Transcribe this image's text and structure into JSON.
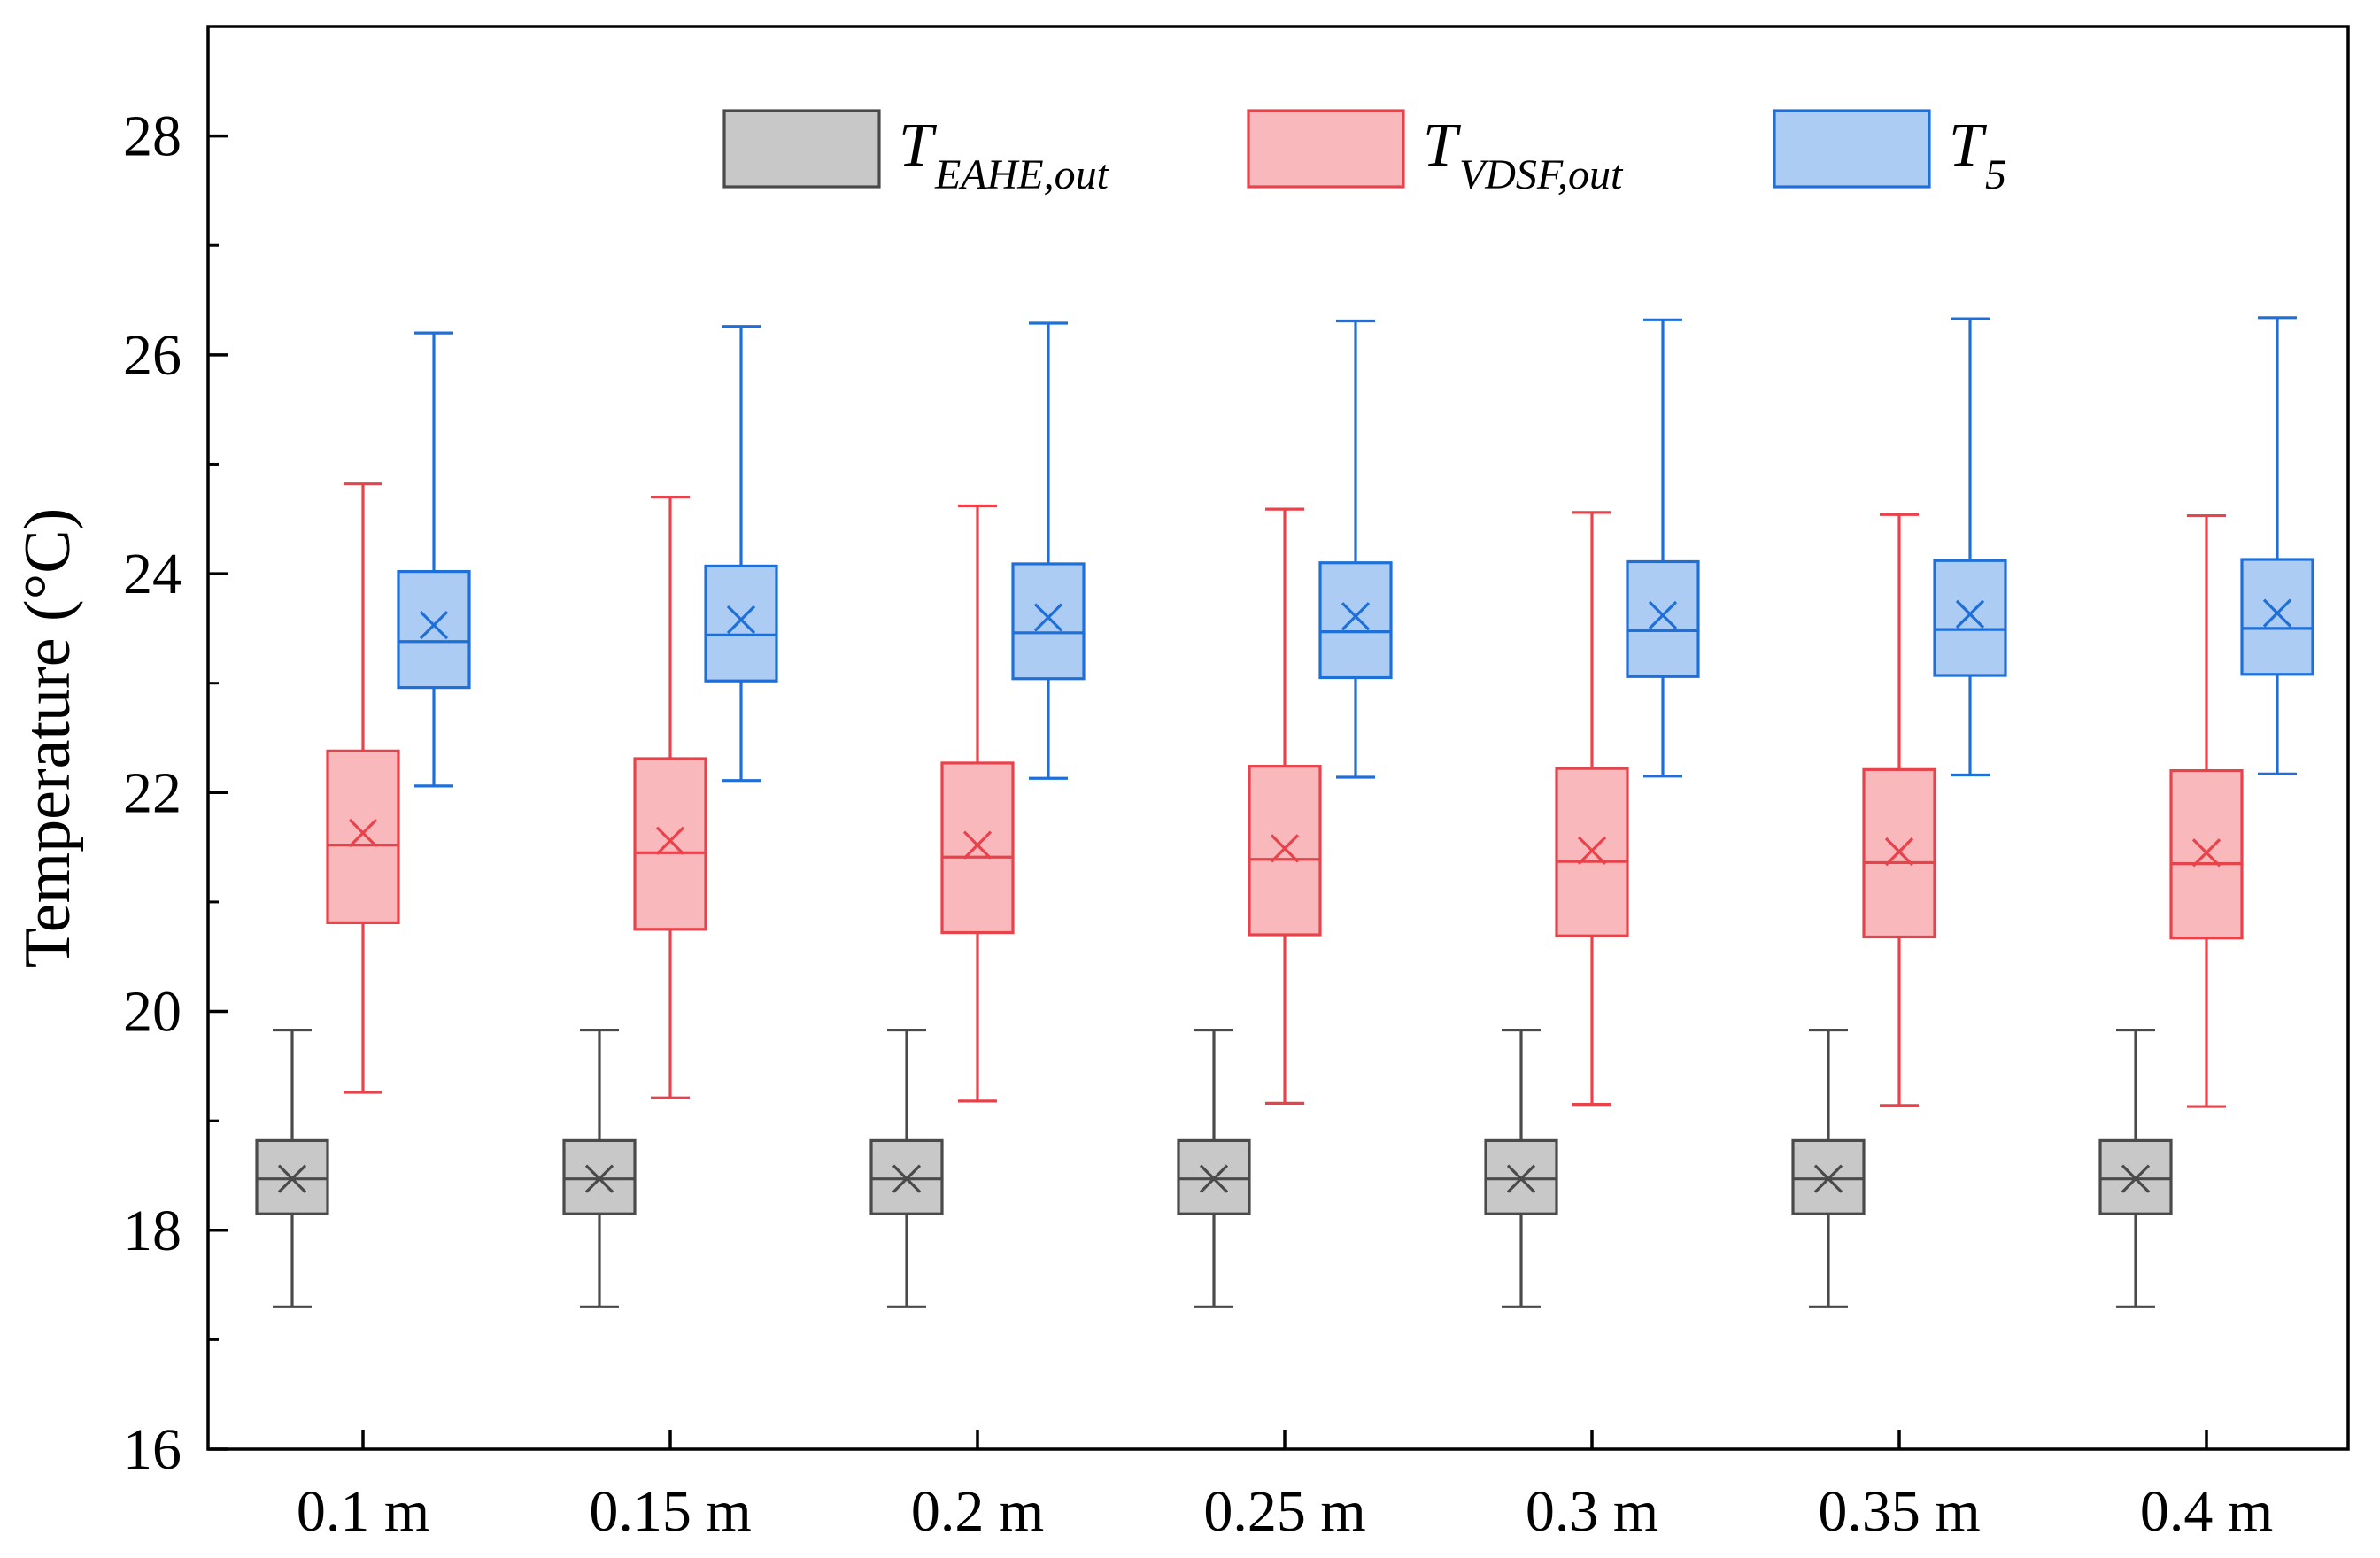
{
  "chart_data": {
    "type": "box",
    "title": "",
    "xlabel": "",
    "ylabel": "Temperature (°C)",
    "ylim": [
      16,
      29
    ],
    "yticks": [
      16,
      18,
      20,
      22,
      24,
      26,
      28
    ],
    "ytick_labels": [
      "16",
      "18",
      "20",
      "22",
      "24",
      "26",
      "28"
    ],
    "categories": [
      "0.1 m",
      "0.15 m",
      "0.2 m",
      "0.25 m",
      "0.3 m",
      "0.35 m",
      "0.4 m"
    ],
    "legend_position": "top-center",
    "series": [
      {
        "name": "T_EAHE,out",
        "label_main": "T",
        "label_sub": "EAHE,out",
        "stroke": "#4a4a4a",
        "fill": "#c8c8c8",
        "boxes": [
          {
            "min": 17.3,
            "q1": 18.15,
            "median": 18.47,
            "q3": 18.82,
            "max": 19.83,
            "mean": 18.47
          },
          {
            "min": 17.3,
            "q1": 18.15,
            "median": 18.47,
            "q3": 18.82,
            "max": 19.83,
            "mean": 18.47
          },
          {
            "min": 17.3,
            "q1": 18.15,
            "median": 18.47,
            "q3": 18.82,
            "max": 19.83,
            "mean": 18.47
          },
          {
            "min": 17.3,
            "q1": 18.15,
            "median": 18.47,
            "q3": 18.82,
            "max": 19.83,
            "mean": 18.47
          },
          {
            "min": 17.3,
            "q1": 18.15,
            "median": 18.47,
            "q3": 18.82,
            "max": 19.83,
            "mean": 18.47
          },
          {
            "min": 17.3,
            "q1": 18.15,
            "median": 18.47,
            "q3": 18.82,
            "max": 19.83,
            "mean": 18.47
          },
          {
            "min": 17.3,
            "q1": 18.15,
            "median": 18.47,
            "q3": 18.82,
            "max": 19.83,
            "mean": 18.47
          }
        ]
      },
      {
        "name": "T_VDSF,out",
        "label_main": "T",
        "label_sub": "VDSF,out",
        "stroke": "#e8424b",
        "fill": "#f9b8bb",
        "boxes": [
          {
            "min": 19.26,
            "q1": 20.81,
            "median": 21.52,
            "q3": 22.38,
            "max": 24.82,
            "mean": 21.63
          },
          {
            "min": 19.21,
            "q1": 20.75,
            "median": 21.45,
            "q3": 22.31,
            "max": 24.7,
            "mean": 21.56
          },
          {
            "min": 19.18,
            "q1": 20.72,
            "median": 21.41,
            "q3": 22.27,
            "max": 24.62,
            "mean": 21.52
          },
          {
            "min": 19.16,
            "q1": 20.7,
            "median": 21.39,
            "q3": 22.24,
            "max": 24.59,
            "mean": 21.49
          },
          {
            "min": 19.15,
            "q1": 20.69,
            "median": 21.37,
            "q3": 22.22,
            "max": 24.56,
            "mean": 21.47
          },
          {
            "min": 19.14,
            "q1": 20.68,
            "median": 21.36,
            "q3": 22.21,
            "max": 24.54,
            "mean": 21.46
          },
          {
            "min": 19.13,
            "q1": 20.67,
            "median": 21.35,
            "q3": 22.2,
            "max": 24.53,
            "mean": 21.45
          }
        ]
      },
      {
        "name": "T_5",
        "label_main": "T",
        "label_sub": "5",
        "stroke": "#1f6fd8",
        "fill": "#acccf4",
        "boxes": [
          {
            "min": 22.06,
            "q1": 22.96,
            "median": 23.38,
            "q3": 24.02,
            "max": 26.2,
            "mean": 23.53
          },
          {
            "min": 22.11,
            "q1": 23.02,
            "median": 23.44,
            "q3": 24.07,
            "max": 26.26,
            "mean": 23.58
          },
          {
            "min": 22.13,
            "q1": 23.04,
            "median": 23.46,
            "q3": 24.09,
            "max": 26.29,
            "mean": 23.6
          },
          {
            "min": 22.14,
            "q1": 23.05,
            "median": 23.47,
            "q3": 24.1,
            "max": 26.31,
            "mean": 23.61
          },
          {
            "min": 22.15,
            "q1": 23.06,
            "median": 23.48,
            "q3": 24.11,
            "max": 26.32,
            "mean": 23.62
          },
          {
            "min": 22.16,
            "q1": 23.07,
            "median": 23.49,
            "q3": 24.12,
            "max": 26.33,
            "mean": 23.63
          },
          {
            "min": 22.17,
            "q1": 23.08,
            "median": 23.5,
            "q3": 24.13,
            "max": 26.34,
            "mean": 23.64
          }
        ]
      }
    ]
  }
}
